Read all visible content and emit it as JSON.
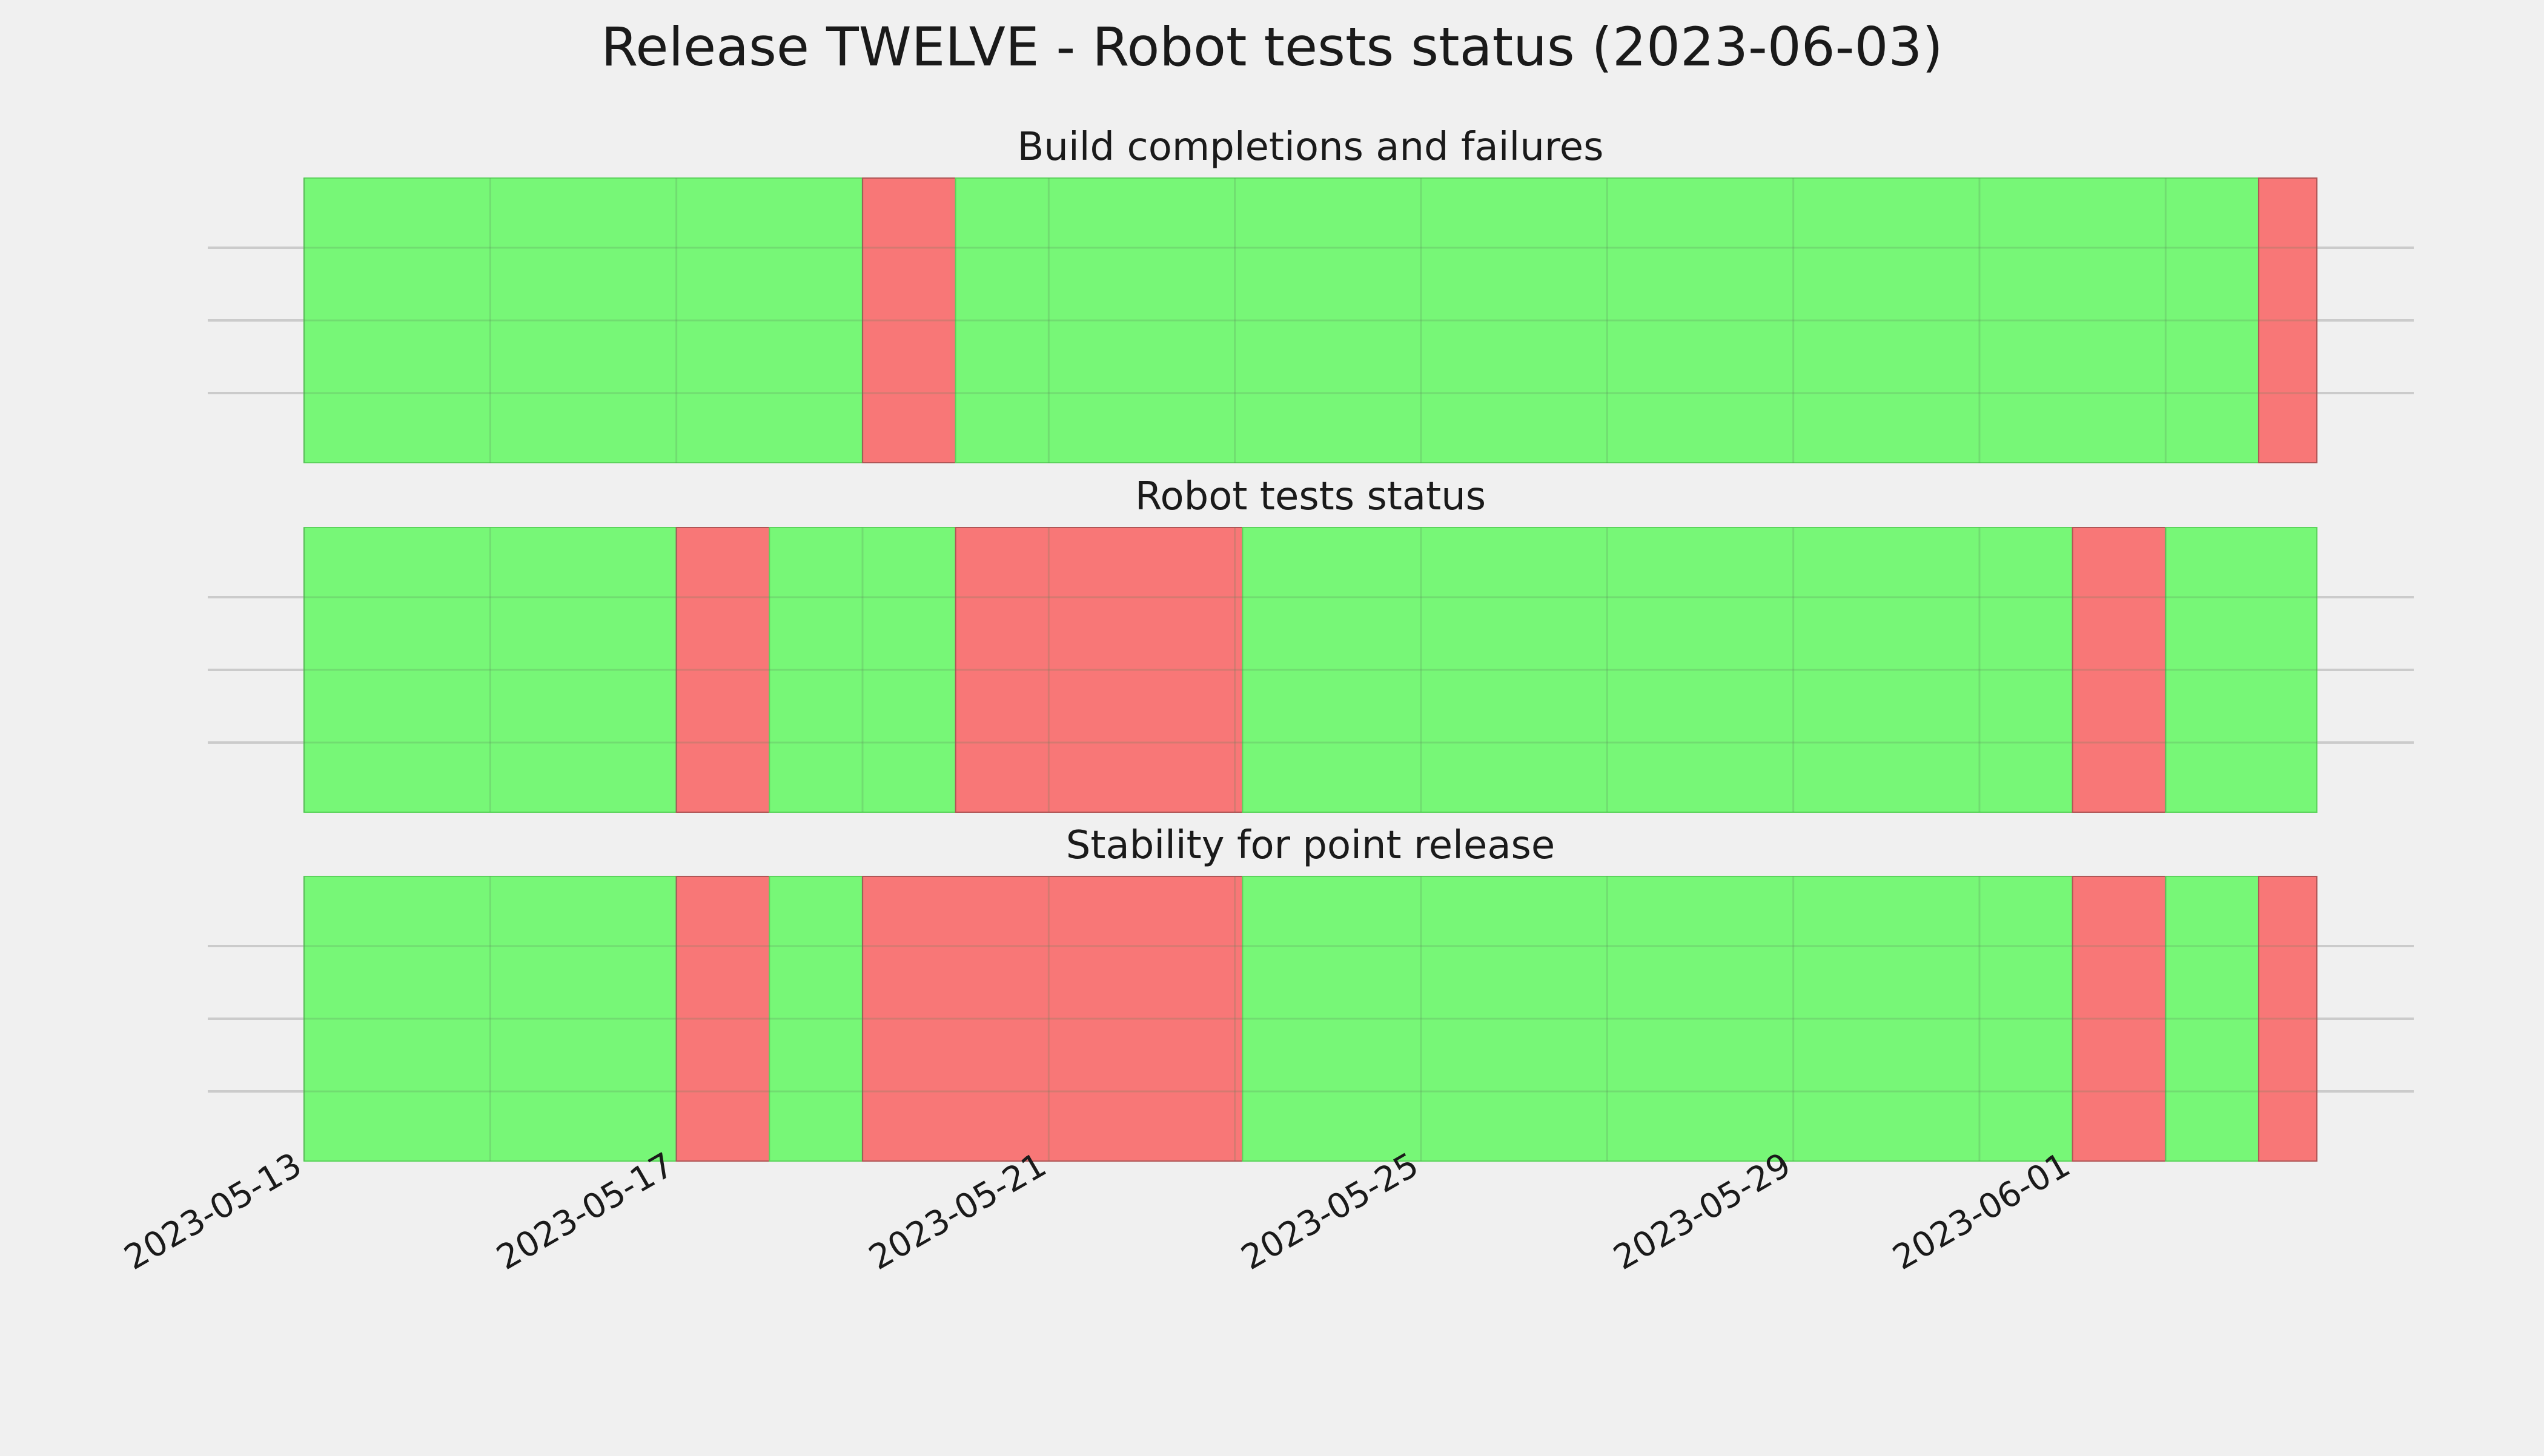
{
  "chart_data": {
    "type": "timeline",
    "title": "Release TWELVE - Robot tests status (2023-06-03)",
    "x_range": [
      "2023-05-13",
      "2023-06-03 15:00"
    ],
    "x_ticks": [
      "2023-05-13",
      "2023-05-17",
      "2023-05-21",
      "2023-05-25",
      "2023-05-29",
      "2023-06-01"
    ],
    "grid": true,
    "colors": {
      "pass": "#77f777",
      "fail": "#f87777",
      "background": "#f0f0f0"
    },
    "panels": [
      {
        "title": "Build completions and failures",
        "segments": [
          {
            "start": "2023-05-13",
            "end": "2023-05-19",
            "status": "pass"
          },
          {
            "start": "2023-05-19",
            "end": "2023-05-20",
            "status": "fail"
          },
          {
            "start": "2023-05-20",
            "end": "2023-06-03",
            "status": "pass"
          },
          {
            "start": "2023-06-03",
            "end": "2023-06-03 15:00",
            "status": "fail"
          }
        ]
      },
      {
        "title": "Robot tests status",
        "segments": [
          {
            "start": "2023-05-13",
            "end": "2023-05-17",
            "status": "pass"
          },
          {
            "start": "2023-05-17",
            "end": "2023-05-18",
            "status": "fail"
          },
          {
            "start": "2023-05-18",
            "end": "2023-05-20",
            "status": "pass"
          },
          {
            "start": "2023-05-20",
            "end": "2023-05-23 02:00",
            "status": "fail"
          },
          {
            "start": "2023-05-23 02:00",
            "end": "2023-06-01",
            "status": "pass"
          },
          {
            "start": "2023-06-01",
            "end": "2023-06-02",
            "status": "fail"
          },
          {
            "start": "2023-06-02",
            "end": "2023-06-03 15:00",
            "status": "pass"
          }
        ]
      },
      {
        "title": "Stability for point release",
        "segments": [
          {
            "start": "2023-05-13",
            "end": "2023-05-17",
            "status": "pass"
          },
          {
            "start": "2023-05-17",
            "end": "2023-05-18",
            "status": "fail"
          },
          {
            "start": "2023-05-18",
            "end": "2023-05-19",
            "status": "pass"
          },
          {
            "start": "2023-05-19",
            "end": "2023-05-23 02:00",
            "status": "fail"
          },
          {
            "start": "2023-05-23 02:00",
            "end": "2023-06-01",
            "status": "pass"
          },
          {
            "start": "2023-06-01",
            "end": "2023-06-02",
            "status": "fail"
          },
          {
            "start": "2023-06-02",
            "end": "2023-06-03",
            "status": "pass"
          },
          {
            "start": "2023-06-03",
            "end": "2023-06-03 15:00",
            "status": "fail"
          }
        ]
      }
    ]
  }
}
